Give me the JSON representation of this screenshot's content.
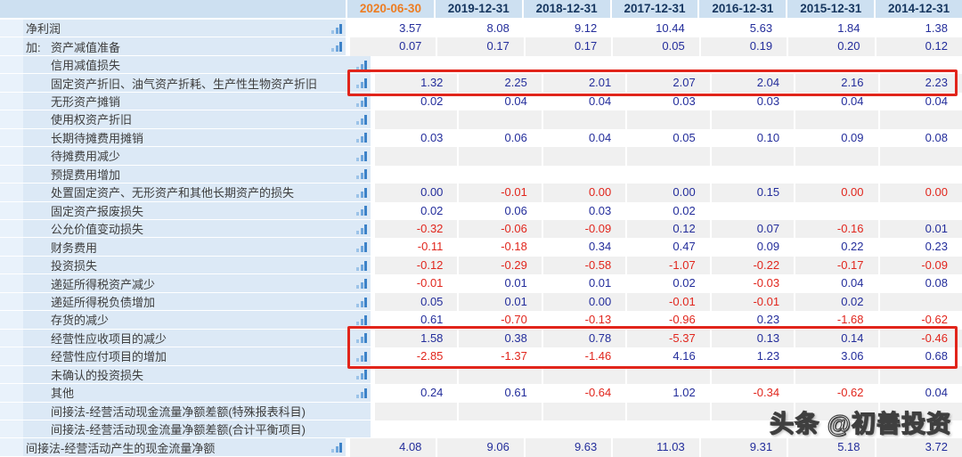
{
  "watermark": "头条 @初善投资",
  "colors": {
    "header_bg": "#cde0f1",
    "label_bg": "#dce9f6",
    "strip_bg": "#e9f2fb",
    "stripe_gray": "#f0f0f0",
    "value_blue": "#232d9b",
    "value_red": "#e1261d",
    "header_text": "#16365f",
    "current_period_orange": "#ed7d23",
    "highlight_border": "#e1251b",
    "icon_blue": "#3c82c8"
  },
  "table": {
    "columns": [
      "2020-06-30",
      "2019-12-31",
      "2018-12-31",
      "2017-12-31",
      "2016-12-31",
      "2015-12-31",
      "2014-12-31"
    ],
    "current_column_index": 0,
    "icon_name": "bar-chart-icon",
    "rows": [
      {
        "label": "净利润",
        "prefix": "",
        "indent": 1,
        "icon": true,
        "cells": [
          [
            "3.57",
            "b"
          ],
          [
            "8.08",
            "b"
          ],
          [
            "9.12",
            "b"
          ],
          [
            "10.44",
            "b"
          ],
          [
            "5.63",
            "b"
          ],
          [
            "1.84",
            "b"
          ],
          [
            "1.38",
            "b"
          ]
        ]
      },
      {
        "label": "资产减值准备",
        "prefix": "加:",
        "indent": 1,
        "icon": true,
        "cells": [
          [
            "0.07",
            "b"
          ],
          [
            "0.17",
            "b"
          ],
          [
            "0.17",
            "b"
          ],
          [
            "0.05",
            "b"
          ],
          [
            "0.19",
            "b"
          ],
          [
            "0.20",
            "b"
          ],
          [
            "0.12",
            "b"
          ]
        ]
      },
      {
        "label": "信用减值损失",
        "prefix": "",
        "indent": 2,
        "icon": true,
        "cells": [
          [
            "",
            ""
          ],
          [
            "",
            ""
          ],
          [
            "",
            ""
          ],
          [
            "",
            ""
          ],
          [
            "",
            ""
          ],
          [
            "",
            ""
          ],
          [
            "",
            ""
          ]
        ]
      },
      {
        "label": "固定资产折旧、油气资产折耗、生产性生物资产折旧",
        "prefix": "",
        "indent": 2,
        "icon": true,
        "highlighted": true,
        "cells": [
          [
            "1.32",
            "b"
          ],
          [
            "2.25",
            "b"
          ],
          [
            "2.01",
            "b"
          ],
          [
            "2.07",
            "b"
          ],
          [
            "2.04",
            "b"
          ],
          [
            "2.16",
            "b"
          ],
          [
            "2.23",
            "b"
          ]
        ]
      },
      {
        "label": "无形资产摊销",
        "prefix": "",
        "indent": 2,
        "icon": true,
        "cells": [
          [
            "0.02",
            "b"
          ],
          [
            "0.04",
            "b"
          ],
          [
            "0.04",
            "b"
          ],
          [
            "0.03",
            "b"
          ],
          [
            "0.03",
            "b"
          ],
          [
            "0.04",
            "b"
          ],
          [
            "0.04",
            "b"
          ]
        ]
      },
      {
        "label": "使用权资产折旧",
        "prefix": "",
        "indent": 2,
        "icon": true,
        "cells": [
          [
            "",
            ""
          ],
          [
            "",
            ""
          ],
          [
            "",
            ""
          ],
          [
            "",
            ""
          ],
          [
            "",
            ""
          ],
          [
            "",
            ""
          ],
          [
            "",
            ""
          ]
        ]
      },
      {
        "label": "长期待摊费用摊销",
        "prefix": "",
        "indent": 2,
        "icon": true,
        "cells": [
          [
            "0.03",
            "b"
          ],
          [
            "0.06",
            "b"
          ],
          [
            "0.04",
            "b"
          ],
          [
            "0.05",
            "b"
          ],
          [
            "0.10",
            "b"
          ],
          [
            "0.09",
            "b"
          ],
          [
            "0.08",
            "b"
          ]
        ]
      },
      {
        "label": "待摊费用减少",
        "prefix": "",
        "indent": 2,
        "icon": true,
        "cells": [
          [
            "",
            ""
          ],
          [
            "",
            ""
          ],
          [
            "",
            ""
          ],
          [
            "",
            ""
          ],
          [
            "",
            ""
          ],
          [
            "",
            ""
          ],
          [
            "",
            ""
          ]
        ]
      },
      {
        "label": "预提费用增加",
        "prefix": "",
        "indent": 2,
        "icon": true,
        "cells": [
          [
            "",
            ""
          ],
          [
            "",
            ""
          ],
          [
            "",
            ""
          ],
          [
            "",
            ""
          ],
          [
            "",
            ""
          ],
          [
            "",
            ""
          ],
          [
            "",
            ""
          ]
        ]
      },
      {
        "label": "处置固定资产、无形资产和其他长期资产的损失",
        "prefix": "",
        "indent": 2,
        "icon": true,
        "cells": [
          [
            "0.00",
            "b"
          ],
          [
            "-0.01",
            "r"
          ],
          [
            "0.00",
            "r"
          ],
          [
            "0.00",
            "b"
          ],
          [
            "0.15",
            "b"
          ],
          [
            "0.00",
            "r"
          ],
          [
            "0.00",
            "r"
          ]
        ]
      },
      {
        "label": "固定资产报废损失",
        "prefix": "",
        "indent": 2,
        "icon": true,
        "cells": [
          [
            "0.02",
            "b"
          ],
          [
            "0.06",
            "b"
          ],
          [
            "0.03",
            "b"
          ],
          [
            "0.02",
            "b"
          ],
          [
            "",
            ""
          ],
          [
            "",
            ""
          ],
          [
            "",
            ""
          ]
        ]
      },
      {
        "label": "公允价值变动损失",
        "prefix": "",
        "indent": 2,
        "icon": true,
        "cells": [
          [
            "-0.32",
            "r"
          ],
          [
            "-0.06",
            "r"
          ],
          [
            "-0.09",
            "r"
          ],
          [
            "0.12",
            "b"
          ],
          [
            "0.07",
            "b"
          ],
          [
            "-0.16",
            "r"
          ],
          [
            "0.01",
            "b"
          ]
        ]
      },
      {
        "label": "财务费用",
        "prefix": "",
        "indent": 2,
        "icon": true,
        "cells": [
          [
            "-0.11",
            "r"
          ],
          [
            "-0.18",
            "r"
          ],
          [
            "0.34",
            "b"
          ],
          [
            "0.47",
            "b"
          ],
          [
            "0.09",
            "b"
          ],
          [
            "0.22",
            "b"
          ],
          [
            "0.23",
            "b"
          ]
        ]
      },
      {
        "label": "投资损失",
        "prefix": "",
        "indent": 2,
        "icon": true,
        "cells": [
          [
            "-0.12",
            "r"
          ],
          [
            "-0.29",
            "r"
          ],
          [
            "-0.58",
            "r"
          ],
          [
            "-1.07",
            "r"
          ],
          [
            "-0.22",
            "r"
          ],
          [
            "-0.17",
            "r"
          ],
          [
            "-0.09",
            "r"
          ]
        ]
      },
      {
        "label": "递延所得税资产减少",
        "prefix": "",
        "indent": 2,
        "icon": true,
        "cells": [
          [
            "-0.01",
            "r"
          ],
          [
            "0.01",
            "b"
          ],
          [
            "0.01",
            "b"
          ],
          [
            "0.02",
            "b"
          ],
          [
            "-0.03",
            "r"
          ],
          [
            "0.04",
            "b"
          ],
          [
            "0.08",
            "b"
          ]
        ]
      },
      {
        "label": "递延所得税负债增加",
        "prefix": "",
        "indent": 2,
        "icon": true,
        "cells": [
          [
            "0.05",
            "b"
          ],
          [
            "0.01",
            "b"
          ],
          [
            "0.00",
            "b"
          ],
          [
            "-0.01",
            "r"
          ],
          [
            "-0.01",
            "r"
          ],
          [
            "0.02",
            "b"
          ],
          [
            "",
            ""
          ]
        ]
      },
      {
        "label": "存货的减少",
        "prefix": "",
        "indent": 2,
        "icon": true,
        "cells": [
          [
            "0.61",
            "b"
          ],
          [
            "-0.70",
            "r"
          ],
          [
            "-0.13",
            "r"
          ],
          [
            "-0.96",
            "r"
          ],
          [
            "0.23",
            "b"
          ],
          [
            "-1.68",
            "r"
          ],
          [
            "-0.62",
            "r"
          ]
        ]
      },
      {
        "label": "经营性应收项目的减少",
        "prefix": "",
        "indent": 2,
        "icon": true,
        "highlighted": true,
        "cells": [
          [
            "1.58",
            "b"
          ],
          [
            "0.38",
            "b"
          ],
          [
            "0.78",
            "b"
          ],
          [
            "-5.37",
            "r"
          ],
          [
            "0.13",
            "b"
          ],
          [
            "0.14",
            "b"
          ],
          [
            "-0.46",
            "r"
          ]
        ]
      },
      {
        "label": "经营性应付项目的增加",
        "prefix": "",
        "indent": 2,
        "icon": true,
        "highlighted": true,
        "cells": [
          [
            "-2.85",
            "r"
          ],
          [
            "-1.37",
            "r"
          ],
          [
            "-1.46",
            "r"
          ],
          [
            "4.16",
            "b"
          ],
          [
            "1.23",
            "b"
          ],
          [
            "3.06",
            "b"
          ],
          [
            "0.68",
            "b"
          ]
        ]
      },
      {
        "label": "未确认的投资损失",
        "prefix": "",
        "indent": 2,
        "icon": true,
        "cells": [
          [
            "",
            ""
          ],
          [
            "",
            ""
          ],
          [
            "",
            ""
          ],
          [
            "",
            ""
          ],
          [
            "",
            ""
          ],
          [
            "",
            ""
          ],
          [
            "",
            ""
          ]
        ]
      },
      {
        "label": "其他",
        "prefix": "",
        "indent": 2,
        "icon": true,
        "cells": [
          [
            "0.24",
            "b"
          ],
          [
            "0.61",
            "b"
          ],
          [
            "-0.64",
            "r"
          ],
          [
            "1.02",
            "b"
          ],
          [
            "-0.34",
            "r"
          ],
          [
            "-0.62",
            "r"
          ],
          [
            "0.04",
            "b"
          ]
        ]
      },
      {
        "label": "间接法-经营活动现金流量净额差额(特殊报表科目)",
        "prefix": "",
        "indent": 2,
        "icon": false,
        "cells": [
          [
            "",
            ""
          ],
          [
            "",
            ""
          ],
          [
            "",
            ""
          ],
          [
            "",
            ""
          ],
          [
            "",
            ""
          ],
          [
            "",
            ""
          ],
          [
            "",
            ""
          ]
        ]
      },
      {
        "label": "间接法-经营活动现金流量净额差额(合计平衡项目)",
        "prefix": "",
        "indent": 2,
        "icon": false,
        "cells": [
          [
            "",
            ""
          ],
          [
            "",
            ""
          ],
          [
            "",
            ""
          ],
          [
            "",
            ""
          ],
          [
            "",
            ""
          ],
          [
            "",
            ""
          ],
          [
            "",
            ""
          ]
        ]
      },
      {
        "label": "间接法-经营活动产生的现金流量净额",
        "prefix": "",
        "indent": 1,
        "icon": true,
        "cells": [
          [
            "4.08",
            "b"
          ],
          [
            "9.06",
            "b"
          ],
          [
            "9.63",
            "b"
          ],
          [
            "11.03",
            "b"
          ],
          [
            "9.31",
            "b"
          ],
          [
            "5.18",
            "b"
          ],
          [
            "3.72",
            "b"
          ]
        ]
      }
    ]
  }
}
